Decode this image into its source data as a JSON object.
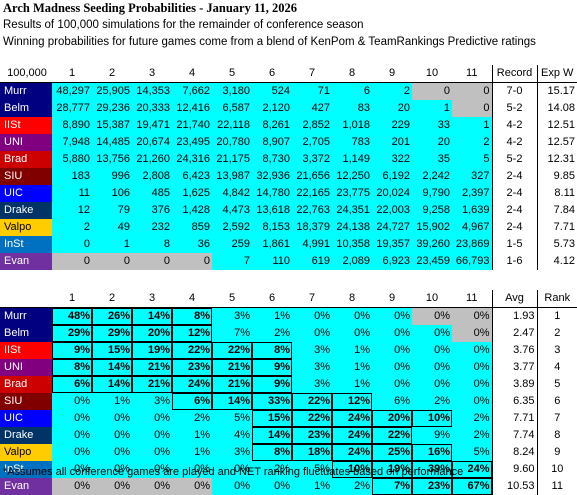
{
  "title": "Arch Madness Seeding Probabilities - January 11, 2026",
  "subtitle1": "Results of 100,000 simulations for the remainder of conference season",
  "subtitle2": "Winning probabilities for future games come from a blend of KenPom & TeamRankings Predictive ratings",
  "table1": {
    "corner": "100,000",
    "seed_headers": [
      "1",
      "2",
      "3",
      "4",
      "5",
      "6",
      "7",
      "8",
      "9",
      "10",
      "11"
    ],
    "record_header": "Record",
    "expw_header": "Exp W",
    "rows": [
      {
        "team": "Murr",
        "bg": "#000080",
        "fg": "#ffffff",
        "values": [
          "48,297",
          "25,905",
          "14,353",
          "7,662",
          "3,180",
          "524",
          "71",
          "6",
          "2",
          "0",
          "0"
        ],
        "gray": [
          9,
          10
        ],
        "record": "7-0",
        "expw": "15.17"
      },
      {
        "team": "Belm",
        "bg": "#000080",
        "fg": "#ffffff",
        "values": [
          "28,777",
          "29,236",
          "20,333",
          "12,416",
          "6,587",
          "2,120",
          "427",
          "83",
          "20",
          "1",
          "0"
        ],
        "gray": [
          10
        ],
        "record": "5-2",
        "expw": "14.08"
      },
      {
        "team": "IISt",
        "bg": "#ff0000",
        "fg": "#ffffff",
        "values": [
          "8,890",
          "15,387",
          "19,471",
          "21,740",
          "22,118",
          "8,261",
          "2,852",
          "1,018",
          "229",
          "33",
          "1"
        ],
        "gray": [],
        "record": "4-2",
        "expw": "12.51"
      },
      {
        "team": "UNI",
        "bg": "#800080",
        "fg": "#ffffff",
        "values": [
          "7,948",
          "14,485",
          "20,674",
          "23,495",
          "20,780",
          "8,907",
          "2,705",
          "783",
          "201",
          "20",
          "2"
        ],
        "gray": [],
        "record": "4-2",
        "expw": "12.57"
      },
      {
        "team": "Brad",
        "bg": "#cc0000",
        "fg": "#ffffff",
        "values": [
          "5,880",
          "13,756",
          "21,260",
          "24,316",
          "21,175",
          "8,730",
          "3,372",
          "1,149",
          "322",
          "35",
          "5"
        ],
        "gray": [],
        "record": "5-2",
        "expw": "12.31"
      },
      {
        "team": "SIU",
        "bg": "#800000",
        "fg": "#ffffff",
        "values": [
          "183",
          "996",
          "2,808",
          "6,423",
          "13,987",
          "32,936",
          "21,656",
          "12,250",
          "6,192",
          "2,242",
          "327"
        ],
        "gray": [],
        "record": "2-4",
        "expw": "9.85"
      },
      {
        "team": "UIC",
        "bg": "#0000ff",
        "fg": "#ffffff",
        "values": [
          "11",
          "106",
          "485",
          "1,625",
          "4,842",
          "14,780",
          "22,165",
          "23,775",
          "20,024",
          "9,790",
          "2,397"
        ],
        "gray": [],
        "record": "2-4",
        "expw": "8.11"
      },
      {
        "team": "Drake",
        "bg": "#003366",
        "fg": "#ffffff",
        "values": [
          "12",
          "79",
          "376",
          "1,428",
          "4,473",
          "13,618",
          "22,763",
          "24,351",
          "22,003",
          "9,258",
          "1,639"
        ],
        "gray": [],
        "record": "2-4",
        "expw": "7.84"
      },
      {
        "team": "Valpo",
        "bg": "#ffcc00",
        "fg": "#000000",
        "values": [
          "2",
          "49",
          "232",
          "859",
          "2,592",
          "8,153",
          "18,379",
          "24,138",
          "24,727",
          "15,902",
          "4,967"
        ],
        "gray": [],
        "record": "2-4",
        "expw": "7.71"
      },
      {
        "team": "InSt",
        "bg": "#0070c0",
        "fg": "#ffffff",
        "values": [
          "0",
          "1",
          "8",
          "36",
          "259",
          "1,861",
          "4,991",
          "10,358",
          "19,357",
          "39,260",
          "23,869"
        ],
        "gray": [],
        "record": "1-5",
        "expw": "5.73"
      },
      {
        "team": "Evan",
        "bg": "#7030a0",
        "fg": "#ffffff",
        "values": [
          "0",
          "0",
          "0",
          "0",
          "7",
          "110",
          "619",
          "2,089",
          "6,923",
          "23,459",
          "66,793"
        ],
        "gray": [
          0,
          1,
          2,
          3
        ],
        "record": "1-6",
        "expw": "4.12"
      }
    ]
  },
  "table2": {
    "seed_headers": [
      "1",
      "2",
      "3",
      "4",
      "5",
      "6",
      "7",
      "8",
      "9",
      "10",
      "11"
    ],
    "avg_header": "Avg",
    "rank_header": "Rank",
    "rows": [
      {
        "team": "Murr",
        "bg": "#000080",
        "fg": "#ffffff",
        "values": [
          "48%",
          "26%",
          "14%",
          "8%",
          "3%",
          "1%",
          "0%",
          "0%",
          "0%",
          "0%",
          "0%"
        ],
        "bold": [
          0,
          1,
          2,
          3
        ],
        "gray": [
          9,
          10
        ],
        "avg": "1.93",
        "rank": "1"
      },
      {
        "team": "Belm",
        "bg": "#000080",
        "fg": "#ffffff",
        "values": [
          "29%",
          "29%",
          "20%",
          "12%",
          "7%",
          "2%",
          "0%",
          "0%",
          "0%",
          "0%",
          "0%"
        ],
        "bold": [
          0,
          1,
          2,
          3
        ],
        "gray": [
          10
        ],
        "avg": "2.47",
        "rank": "2"
      },
      {
        "team": "IISt",
        "bg": "#ff0000",
        "fg": "#ffffff",
        "values": [
          "9%",
          "15%",
          "19%",
          "22%",
          "22%",
          "8%",
          "3%",
          "1%",
          "0%",
          "0%",
          "0%"
        ],
        "bold": [
          0,
          1,
          2,
          3,
          4,
          5
        ],
        "gray": [],
        "avg": "3.76",
        "rank": "3"
      },
      {
        "team": "UNI",
        "bg": "#800080",
        "fg": "#ffffff",
        "values": [
          "8%",
          "14%",
          "21%",
          "23%",
          "21%",
          "9%",
          "3%",
          "1%",
          "0%",
          "0%",
          "0%"
        ],
        "bold": [
          0,
          1,
          2,
          3,
          4,
          5
        ],
        "gray": [],
        "avg": "3.77",
        "rank": "4"
      },
      {
        "team": "Brad",
        "bg": "#cc0000",
        "fg": "#ffffff",
        "values": [
          "6%",
          "14%",
          "21%",
          "24%",
          "21%",
          "9%",
          "3%",
          "1%",
          "0%",
          "0%",
          "0%"
        ],
        "bold": [
          0,
          1,
          2,
          3,
          4,
          5
        ],
        "gray": [],
        "avg": "3.89",
        "rank": "5"
      },
      {
        "team": "SIU",
        "bg": "#800000",
        "fg": "#ffffff",
        "values": [
          "0%",
          "1%",
          "3%",
          "6%",
          "14%",
          "33%",
          "22%",
          "12%",
          "6%",
          "2%",
          "0%"
        ],
        "bold": [
          3,
          4,
          5,
          6,
          7
        ],
        "gray": [],
        "avg": "6.35",
        "rank": "6"
      },
      {
        "team": "UIC",
        "bg": "#0000ff",
        "fg": "#ffffff",
        "values": [
          "0%",
          "0%",
          "0%",
          "2%",
          "5%",
          "15%",
          "22%",
          "24%",
          "20%",
          "10%",
          "2%"
        ],
        "bold": [
          5,
          6,
          7,
          8,
          9
        ],
        "gray": [],
        "avg": "7.71",
        "rank": "7"
      },
      {
        "team": "Drake",
        "bg": "#003366",
        "fg": "#ffffff",
        "values": [
          "0%",
          "0%",
          "0%",
          "1%",
          "4%",
          "14%",
          "23%",
          "24%",
          "22%",
          "9%",
          "2%"
        ],
        "bold": [
          5,
          6,
          7,
          8
        ],
        "gray": [],
        "avg": "7.74",
        "rank": "8"
      },
      {
        "team": "Valpo",
        "bg": "#ffcc00",
        "fg": "#000000",
        "values": [
          "0%",
          "0%",
          "0%",
          "1%",
          "3%",
          "8%",
          "18%",
          "24%",
          "25%",
          "16%",
          "5%"
        ],
        "bold": [
          5,
          6,
          7,
          8,
          9
        ],
        "gray": [],
        "avg": "8.24",
        "rank": "9"
      },
      {
        "team": "InSt",
        "bg": "#0070c0",
        "fg": "#ffffff",
        "values": [
          "0%",
          "0%",
          "0%",
          "0%",
          "0%",
          "2%",
          "5%",
          "10%",
          "19%",
          "39%",
          "24%"
        ],
        "bold": [
          7,
          8,
          9,
          10
        ],
        "gray": [],
        "avg": "9.60",
        "rank": "10"
      },
      {
        "team": "Evan",
        "bg": "#7030a0",
        "fg": "#ffffff",
        "values": [
          "0%",
          "0%",
          "0%",
          "0%",
          "0%",
          "0%",
          "1%",
          "2%",
          "7%",
          "23%",
          "67%"
        ],
        "bold": [
          8,
          9,
          10
        ],
        "gray": [
          0,
          1,
          2,
          3
        ],
        "avg": "10.53",
        "rank": "11"
      }
    ]
  },
  "footnote": "*Assumes all conference games are played and NET ranking fluctuates based on performance"
}
